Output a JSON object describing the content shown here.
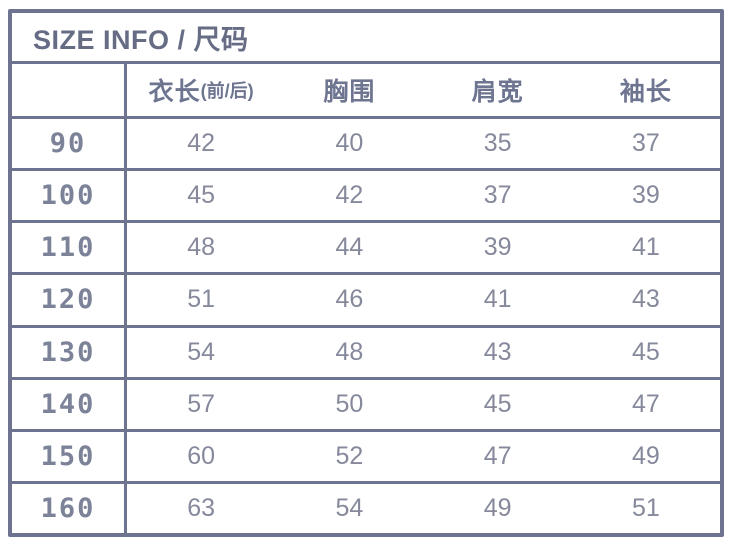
{
  "title": "SIZE INFO / 尺码",
  "colors": {
    "border": "#6e7490",
    "title_text": "#656c84",
    "header_text": "#6e7590",
    "size_text": "#7c8298",
    "value_text": "#85899b",
    "background": "#ffffff"
  },
  "table": {
    "columns": [
      {
        "label": "衣长",
        "sub": "(前/后)"
      },
      {
        "label": "胸围",
        "sub": ""
      },
      {
        "label": "肩宽",
        "sub": ""
      },
      {
        "label": "袖长",
        "sub": ""
      }
    ],
    "rows": [
      {
        "size": "90",
        "values": [
          "42",
          "40",
          "35",
          "37"
        ]
      },
      {
        "size": "100",
        "values": [
          "45",
          "42",
          "37",
          "39"
        ]
      },
      {
        "size": "110",
        "values": [
          "48",
          "44",
          "39",
          "41"
        ]
      },
      {
        "size": "120",
        "values": [
          "51",
          "46",
          "41",
          "43"
        ]
      },
      {
        "size": "130",
        "values": [
          "54",
          "48",
          "43",
          "45"
        ]
      },
      {
        "size": "140",
        "values": [
          "57",
          "50",
          "45",
          "47"
        ]
      },
      {
        "size": "150",
        "values": [
          "60",
          "52",
          "47",
          "49"
        ]
      },
      {
        "size": "160",
        "values": [
          "63",
          "54",
          "49",
          "51"
        ]
      }
    ]
  }
}
